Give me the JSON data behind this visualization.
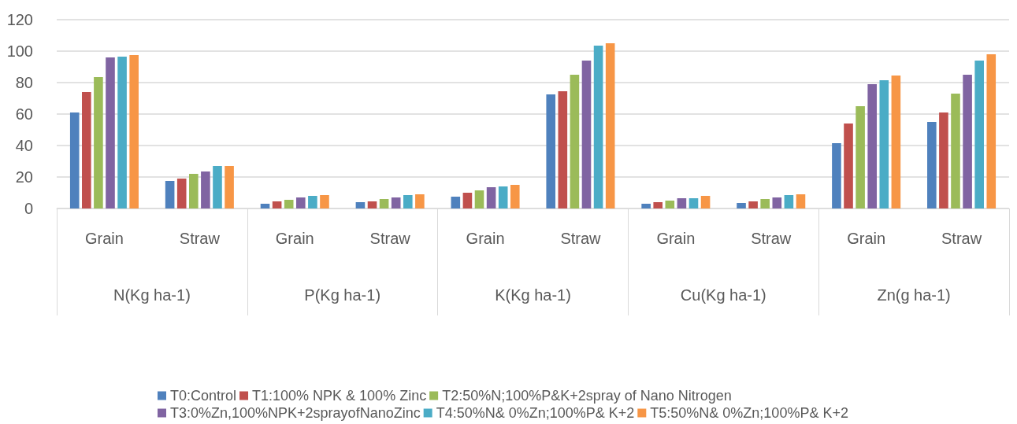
{
  "chart_data": {
    "type": "bar",
    "categories": [
      "Grain",
      "Straw",
      "Grain",
      "Straw",
      "Grain",
      "Straw",
      "Grain",
      "Straw",
      "Grain",
      "Straw"
    ],
    "annotations": [
      "N(Kg ha-1)",
      "P(Kg ha-1)",
      "K(Kg ha-1)",
      "Cu(Kg ha-1)",
      "Zn(g ha-1)"
    ],
    "series": [
      {
        "name": "T0:Control",
        "color": "#4f81bd",
        "values": [
          61,
          17.5,
          3,
          4,
          7.5,
          72.5,
          3,
          3.5,
          41.5,
          55
        ]
      },
      {
        "name": "T1:100% NPK & 100% Zinc",
        "color": "#c0504d",
        "values": [
          74,
          19,
          4.5,
          4.5,
          10,
          74.5,
          4,
          4.5,
          54,
          61
        ]
      },
      {
        "name": "T2:50%N;100%P&K+2spray of Nano Nitrogen",
        "color": "#9bbb59",
        "values": [
          83.5,
          22,
          5.5,
          6,
          11.5,
          85,
          5,
          6,
          65,
          73
        ]
      },
      {
        "name": "T3:0%Zn,100%NPK+2sprayofNanoZinc",
        "color": "#8064a2",
        "values": [
          96,
          23.5,
          7,
          7,
          13.5,
          94,
          6.5,
          7,
          79,
          85
        ]
      },
      {
        "name": "T4:50%N& 0%Zn;100%P& K+2",
        "color": "#4bacc6",
        "values": [
          96.5,
          27,
          8,
          8.5,
          14,
          103.5,
          6.5,
          8.5,
          81.5,
          94
        ]
      },
      {
        "name": "T5:50%N& 0%Zn;100%P& K+2",
        "color": "#f79646",
        "values": [
          97.5,
          27,
          8.5,
          9,
          15,
          105,
          8,
          9,
          84.5,
          98
        ]
      }
    ],
    "ylim": [
      0,
      120
    ],
    "yticks": [
      0,
      20,
      40,
      60,
      80,
      100,
      120
    ],
    "grid": "y",
    "legend": "bottom"
  }
}
